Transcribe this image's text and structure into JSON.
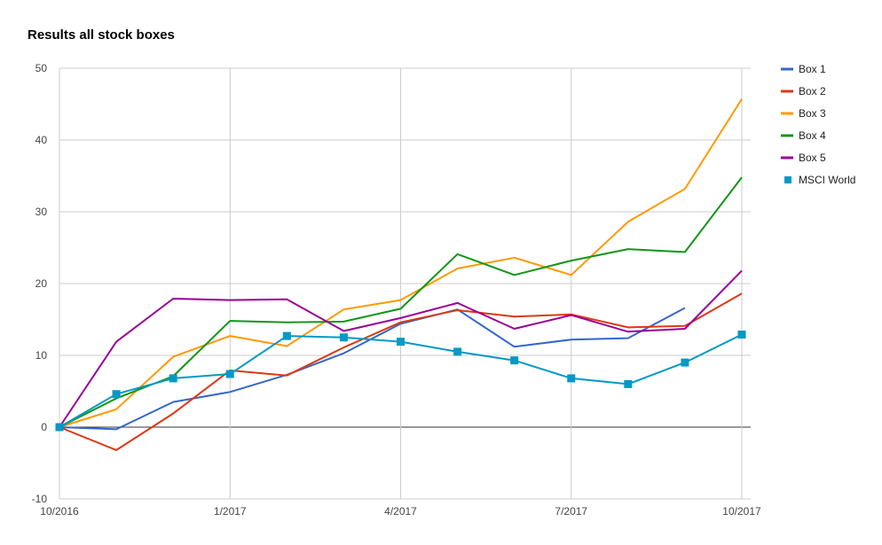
{
  "title": "Results all stock boxes",
  "chart_data": {
    "type": "line",
    "title": "Results all stock boxes",
    "xlabel": "",
    "ylabel": "",
    "x_tick_labels": [
      "10/2016",
      "1/2017",
      "4/2017",
      "7/2017",
      "10/2017"
    ],
    "x": [
      "10/2016",
      "11/2016",
      "12/2016",
      "1/2017",
      "2/2017",
      "3/2017",
      "4/2017",
      "5/2017",
      "6/2017",
      "7/2017",
      "8/2017",
      "9/2017",
      "10/2017"
    ],
    "ylim": [
      -10,
      50
    ],
    "y_ticks": [
      -10,
      0,
      10,
      20,
      30,
      40,
      50
    ],
    "grid": true,
    "legend_position": "right",
    "series": [
      {
        "name": "Box 1",
        "color": "#3366cc",
        "marker": "none",
        "values": [
          0,
          -0.3,
          3.5,
          4.9,
          7.3,
          10.3,
          14.4,
          16.4,
          11.2,
          12.2,
          12.4,
          16.6,
          null
        ]
      },
      {
        "name": "Box 2",
        "color": "#dc3912",
        "marker": "none",
        "values": [
          0,
          -3.2,
          1.9,
          7.9,
          7.2,
          11.1,
          14.6,
          16.3,
          15.4,
          15.7,
          13.9,
          14.1,
          18.6
        ]
      },
      {
        "name": "Box 3",
        "color": "#ff9900",
        "marker": "none",
        "values": [
          0,
          2.5,
          9.8,
          12.7,
          11.3,
          16.4,
          17.7,
          22.1,
          23.6,
          21.2,
          28.6,
          33.2,
          45.7
        ]
      },
      {
        "name": "Box 4",
        "color": "#109618",
        "marker": "none",
        "values": [
          0,
          4.0,
          7.1,
          14.8,
          14.6,
          14.7,
          16.5,
          24.1,
          21.2,
          23.2,
          24.8,
          24.4,
          34.8
        ]
      },
      {
        "name": "Box 5",
        "color": "#990099",
        "marker": "none",
        "values": [
          0,
          11.9,
          17.9,
          17.7,
          17.8,
          13.4,
          15.2,
          17.3,
          13.7,
          15.6,
          13.3,
          13.7,
          21.8
        ]
      },
      {
        "name": "MSCI World",
        "color": "#0099c6",
        "marker": "square",
        "values": [
          0,
          4.6,
          6.8,
          7.4,
          12.7,
          12.5,
          11.9,
          10.5,
          9.3,
          6.8,
          6.0,
          9.0,
          12.9
        ]
      }
    ]
  }
}
